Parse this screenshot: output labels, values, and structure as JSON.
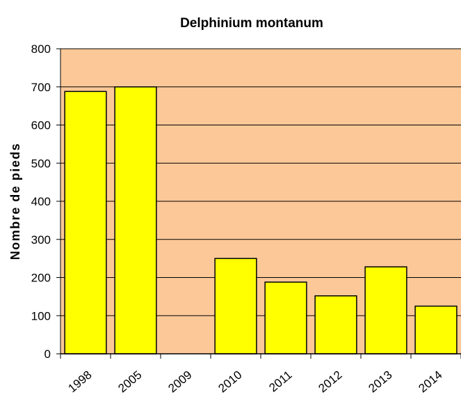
{
  "chart_data": {
    "type": "bar",
    "title": "Delphinium montanum",
    "y_label": "Nombre de pieds",
    "categories": [
      "1998",
      "2005",
      "2009",
      "2010",
      "2011",
      "2012",
      "2013",
      "2014"
    ],
    "values": [
      688,
      700,
      0,
      250,
      188,
      152,
      228,
      125
    ],
    "color": "#ffff00",
    "plot_background": "#fcc898",
    "ylim": [
      0,
      800
    ],
    "yticks": [
      0,
      100,
      200,
      300,
      400,
      500,
      600,
      700,
      800
    ],
    "grid": true
  }
}
